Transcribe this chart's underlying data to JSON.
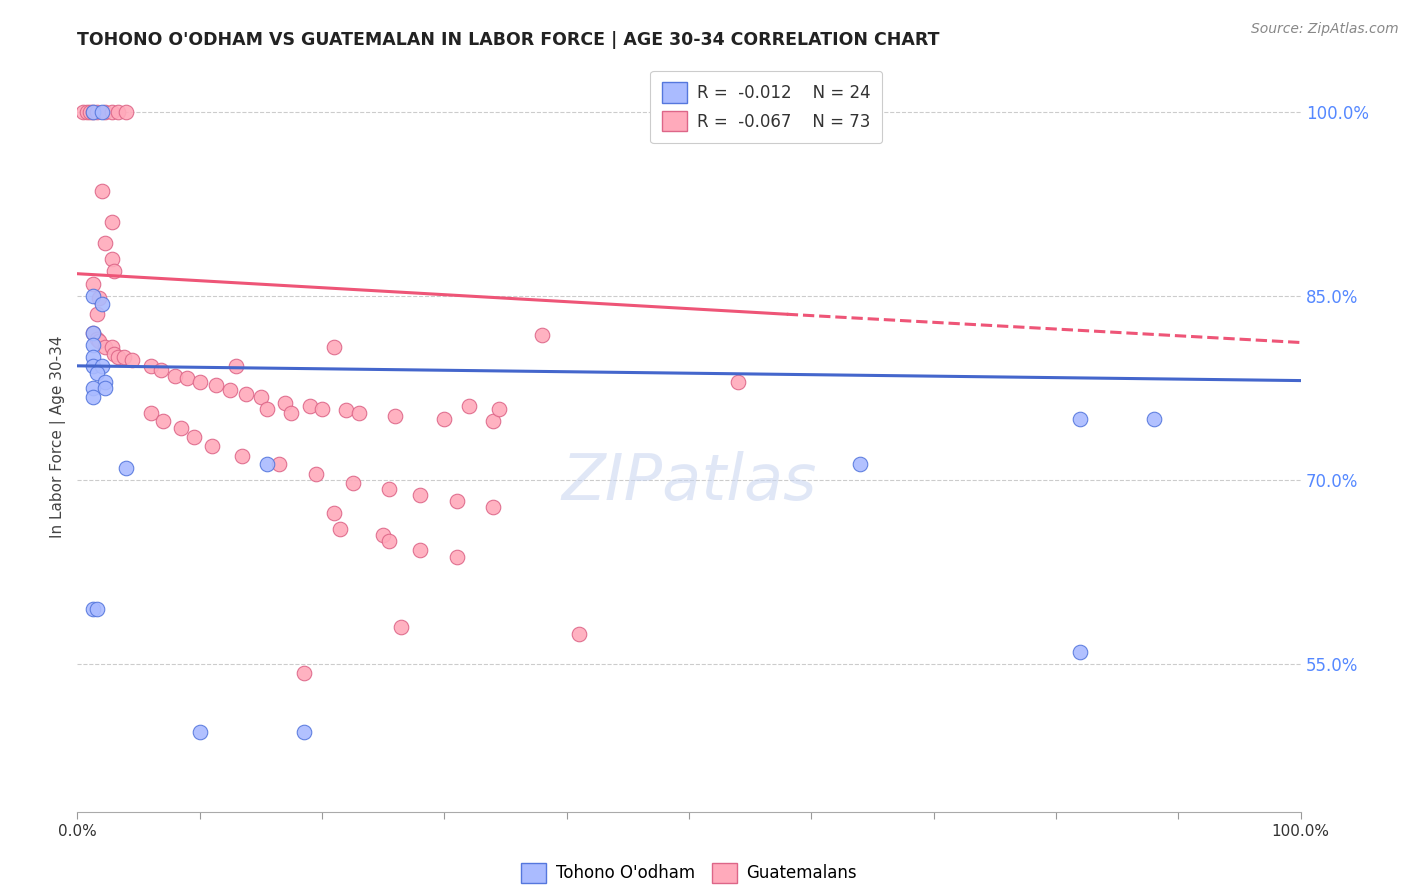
{
  "title": "TOHONO O'ODHAM VS GUATEMALAN IN LABOR FORCE | AGE 30-34 CORRELATION CHART",
  "source": "Source: ZipAtlas.com",
  "ylabel": "In Labor Force | Age 30-34",
  "xlim": [
    0.0,
    1.0
  ],
  "ylim": [
    0.43,
    1.04
  ],
  "right_yticks": [
    0.55,
    0.7,
    0.85,
    1.0
  ],
  "right_yticklabels": [
    "55.0%",
    "70.0%",
    "85.0%",
    "100.0%"
  ],
  "watermark_text": "ZIPatlas",
  "tohono_color": "#aabbff",
  "tohono_edge": "#5577dd",
  "guatemalan_color": "#ffaabb",
  "guatemalan_edge": "#dd6688",
  "line_blue_color": "#4466cc",
  "line_pink_color": "#ee5577",
  "tohono_trendline": [
    [
      0.0,
      0.793
    ],
    [
      1.0,
      0.781
    ]
  ],
  "guatemalan_trendline_solid": [
    [
      0.0,
      0.868
    ],
    [
      0.58,
      0.835
    ]
  ],
  "guatemalan_trendline_dashed": [
    [
      0.58,
      0.835
    ],
    [
      1.0,
      0.812
    ]
  ],
  "tohono_points": [
    [
      0.013,
      1.0
    ],
    [
      0.02,
      1.0
    ],
    [
      0.013,
      0.85
    ],
    [
      0.02,
      0.843
    ],
    [
      0.013,
      0.82
    ],
    [
      0.013,
      0.81
    ],
    [
      0.013,
      0.8
    ],
    [
      0.013,
      0.793
    ],
    [
      0.02,
      0.793
    ],
    [
      0.016,
      0.787
    ],
    [
      0.023,
      0.78
    ],
    [
      0.013,
      0.775
    ],
    [
      0.023,
      0.775
    ],
    [
      0.013,
      0.768
    ],
    [
      0.013,
      0.595
    ],
    [
      0.016,
      0.595
    ],
    [
      0.04,
      0.71
    ],
    [
      0.155,
      0.713
    ],
    [
      0.64,
      0.713
    ],
    [
      0.82,
      0.75
    ],
    [
      0.88,
      0.75
    ],
    [
      0.82,
      0.56
    ],
    [
      0.1,
      0.495
    ],
    [
      0.185,
      0.495
    ]
  ],
  "guatemalan_points": [
    [
      0.005,
      1.0
    ],
    [
      0.008,
      1.0
    ],
    [
      0.01,
      1.0
    ],
    [
      0.013,
      1.0
    ],
    [
      0.016,
      1.0
    ],
    [
      0.023,
      1.0
    ],
    [
      0.028,
      1.0
    ],
    [
      0.033,
      1.0
    ],
    [
      0.04,
      1.0
    ],
    [
      0.02,
      0.935
    ],
    [
      0.028,
      0.91
    ],
    [
      0.023,
      0.893
    ],
    [
      0.028,
      0.88
    ],
    [
      0.03,
      0.87
    ],
    [
      0.013,
      0.86
    ],
    [
      0.018,
      0.848
    ],
    [
      0.016,
      0.835
    ],
    [
      0.38,
      0.818
    ],
    [
      0.013,
      0.82
    ],
    [
      0.016,
      0.815
    ],
    [
      0.018,
      0.813
    ],
    [
      0.023,
      0.808
    ],
    [
      0.028,
      0.808
    ],
    [
      0.03,
      0.803
    ],
    [
      0.033,
      0.8
    ],
    [
      0.038,
      0.8
    ],
    [
      0.045,
      0.798
    ],
    [
      0.06,
      0.793
    ],
    [
      0.068,
      0.79
    ],
    [
      0.08,
      0.785
    ],
    [
      0.09,
      0.783
    ],
    [
      0.1,
      0.78
    ],
    [
      0.113,
      0.777
    ],
    [
      0.125,
      0.773
    ],
    [
      0.138,
      0.77
    ],
    [
      0.15,
      0.768
    ],
    [
      0.17,
      0.763
    ],
    [
      0.19,
      0.76
    ],
    [
      0.06,
      0.755
    ],
    [
      0.07,
      0.748
    ],
    [
      0.085,
      0.742
    ],
    [
      0.095,
      0.735
    ],
    [
      0.11,
      0.728
    ],
    [
      0.135,
      0.72
    ],
    [
      0.165,
      0.713
    ],
    [
      0.195,
      0.705
    ],
    [
      0.225,
      0.698
    ],
    [
      0.255,
      0.693
    ],
    [
      0.28,
      0.688
    ],
    [
      0.31,
      0.683
    ],
    [
      0.34,
      0.678
    ],
    [
      0.21,
      0.673
    ],
    [
      0.215,
      0.66
    ],
    [
      0.25,
      0.655
    ],
    [
      0.255,
      0.65
    ],
    [
      0.28,
      0.643
    ],
    [
      0.31,
      0.637
    ],
    [
      0.265,
      0.58
    ],
    [
      0.41,
      0.575
    ],
    [
      0.185,
      0.543
    ],
    [
      0.54,
      0.78
    ],
    [
      0.2,
      0.758
    ],
    [
      0.22,
      0.757
    ],
    [
      0.23,
      0.755
    ],
    [
      0.26,
      0.752
    ],
    [
      0.3,
      0.75
    ],
    [
      0.34,
      0.748
    ],
    [
      0.155,
      0.758
    ],
    [
      0.175,
      0.755
    ],
    [
      0.32,
      0.76
    ],
    [
      0.345,
      0.758
    ],
    [
      0.21,
      0.808
    ],
    [
      0.13,
      0.793
    ]
  ]
}
